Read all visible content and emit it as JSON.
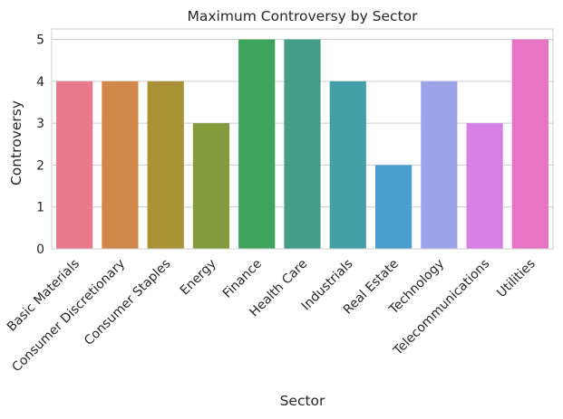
{
  "chart_data": {
    "type": "bar",
    "title": "Maximum Controversy by Sector",
    "xlabel": "Sector",
    "ylabel": "Controversy",
    "categories": [
      "Basic Materials",
      "Consumer Discretionary",
      "Consumer Staples",
      "Energy",
      "Finance",
      "Health Care",
      "Industrials",
      "Real Estate",
      "Technology",
      "Telecommunications",
      "Utilities"
    ],
    "values": [
      4,
      4,
      4,
      3,
      5,
      5,
      4,
      2,
      4,
      3,
      5
    ],
    "colors": [
      "#e8788c",
      "#d1884a",
      "#a99136",
      "#849a3d",
      "#3ea35a",
      "#429e86",
      "#44a0a6",
      "#4a9fce",
      "#9da3e8",
      "#d680e6",
      "#e673c3"
    ],
    "ylim": [
      0,
      5.25
    ],
    "yticks": [
      0,
      1,
      2,
      3,
      4,
      5
    ],
    "grid": "horizontal",
    "legend": "none"
  }
}
